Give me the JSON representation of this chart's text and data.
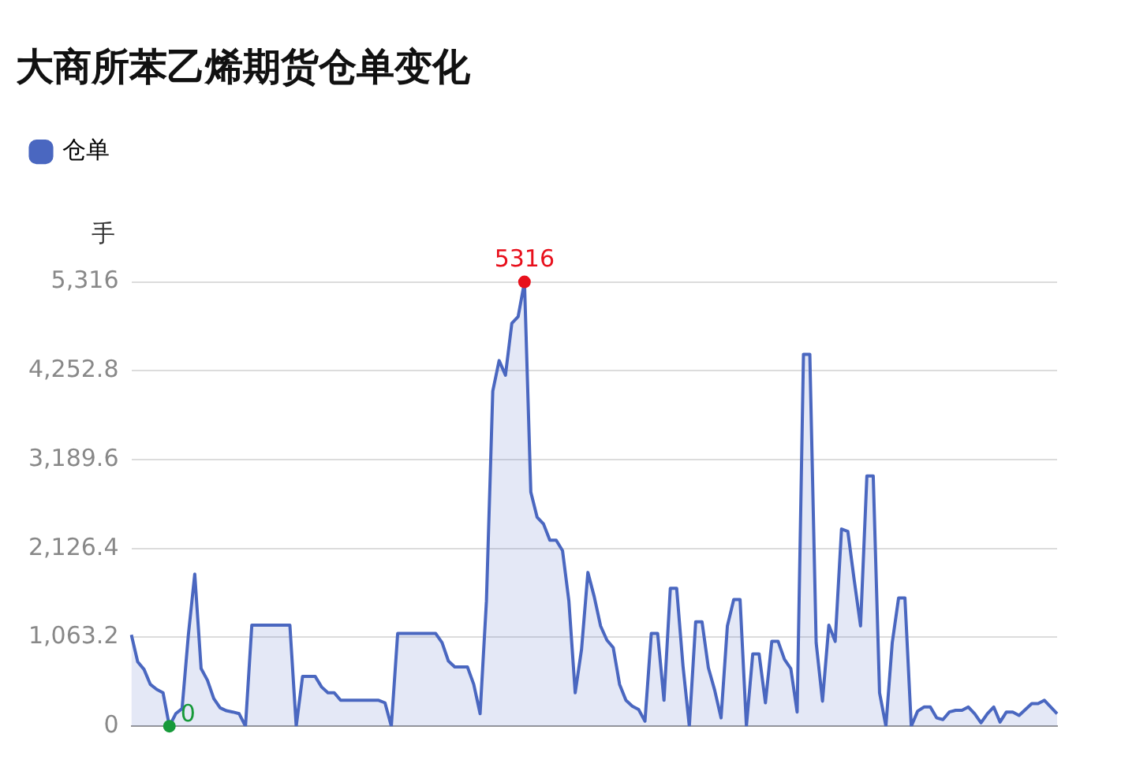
{
  "chart_data": {
    "type": "area",
    "title": "大商所苯乙烯期货仓单变化",
    "ylabel": "手",
    "categories": [
      null,
      null,
      null,
      null,
      null,
      null,
      null,
      null,
      null,
      null,
      null,
      null,
      null,
      null,
      null,
      null,
      null,
      null,
      null,
      null,
      null,
      null,
      null,
      null,
      null,
      null,
      null,
      null,
      null,
      null,
      null,
      null,
      null,
      null,
      null,
      null,
      null,
      null,
      null,
      null,
      null,
      null,
      null,
      null,
      null,
      null,
      null,
      null,
      null,
      null,
      null,
      null,
      null,
      null,
      null,
      null,
      null,
      null,
      null,
      null,
      null,
      null,
      null,
      null,
      null,
      null,
      null,
      null,
      null,
      null,
      null,
      null,
      null,
      null,
      null,
      null,
      null,
      null,
      null,
      null,
      null,
      null,
      null,
      null,
      null,
      null,
      null,
      null,
      null,
      null,
      null,
      null,
      null,
      null,
      null,
      null,
      null,
      null,
      null,
      null,
      null,
      null,
      null,
      null,
      null,
      null,
      null,
      null,
      null,
      null,
      null,
      null,
      null,
      null,
      null,
      null,
      null,
      null,
      null,
      null,
      null,
      null,
      null,
      null,
      null,
      null,
      null,
      null,
      null,
      null,
      null,
      null,
      null,
      null,
      null,
      null,
      null,
      null,
      null,
      null,
      null,
      null,
      null,
      null,
      null,
      null,
      null
    ],
    "series": [
      {
        "name": "仓单",
        "color": "#4a67c0",
        "values": [
          1094,
          770,
          680,
          500,
          440,
          400,
          0,
          150,
          210,
          1100,
          1820,
          690,
          550,
          330,
          220,
          185,
          170,
          150,
          0,
          1210,
          1210,
          1210,
          1210,
          1210,
          1210,
          1210,
          0,
          595,
          595,
          595,
          470,
          400,
          400,
          310,
          310,
          310,
          310,
          310,
          310,
          310,
          280,
          0,
          1110,
          1110,
          1110,
          1110,
          1110,
          1110,
          1110,
          1000,
          780,
          710,
          710,
          710,
          500,
          150,
          1500,
          4010,
          4375,
          4200,
          4820,
          4900,
          5316,
          2800,
          2500,
          2420,
          2225,
          2225,
          2100,
          1500,
          400,
          920,
          1840,
          1550,
          1200,
          1030,
          940,
          500,
          310,
          240,
          200,
          60,
          1110,
          1110,
          310,
          1650,
          1650,
          720,
          0,
          1250,
          1250,
          700,
          430,
          100,
          1200,
          1515,
          1515,
          0,
          865,
          865,
          280,
          1015,
          1015,
          800,
          690,
          170,
          4450,
          4450,
          1000,
          300,
          1210,
          1015,
          2360,
          2330,
          1750,
          1200,
          2995,
          2995,
          400,
          0,
          1000,
          1535,
          1535,
          0,
          180,
          230,
          230,
          100,
          80,
          170,
          190,
          190,
          230,
          150,
          40,
          150,
          230,
          50,
          170,
          170,
          130,
          200,
          270,
          270,
          310,
          230,
          150
        ]
      }
    ],
    "ylim": [
      0,
      5316
    ],
    "yticks": [
      0,
      {
        "value": 1063.2,
        "label": "1,063.2"
      },
      {
        "value": 2126.4,
        "label": "2,126.4"
      },
      {
        "value": 3189.6,
        "label": "3,189.6"
      },
      {
        "value": 4252.8,
        "label": "4,252.8"
      },
      {
        "value": 5316,
        "label": "5,316"
      }
    ],
    "grid": "y",
    "legend": "top left",
    "marker": "none",
    "annotations": [
      {
        "text": "5316",
        "y": 5316
      },
      {
        "text": "0",
        "y": 0
      }
    ]
  }
}
